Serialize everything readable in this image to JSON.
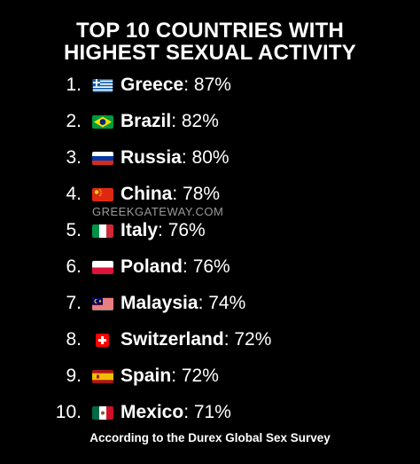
{
  "title": {
    "line1": "TOP 10 COUNTRIES WITH",
    "line2": "HIGHEST SEXUAL ACTIVITY"
  },
  "items": [
    {
      "rank": "1.",
      "country": "Greece",
      "value": "87%",
      "flag": "greece-flag-icon"
    },
    {
      "rank": "2.",
      "country": "Brazil",
      "value": "82%",
      "flag": "brazil-flag-icon"
    },
    {
      "rank": "3.",
      "country": "Russia",
      "value": "80%",
      "flag": "russia-flag-icon"
    },
    {
      "rank": "4.",
      "country": "China",
      "value": "78%",
      "flag": "china-flag-icon"
    },
    {
      "rank": "5.",
      "country": "Italy",
      "value": "76%",
      "flag": "italy-flag-icon"
    },
    {
      "rank": "6.",
      "country": "Poland",
      "value": "76%",
      "flag": "poland-flag-icon"
    },
    {
      "rank": "7.",
      "country": "Malaysia",
      "value": "74%",
      "flag": "malaysia-flag-icon"
    },
    {
      "rank": "8.",
      "country": "Switzerland",
      "value": "72%",
      "flag": "switzerland-flag-icon"
    },
    {
      "rank": "9.",
      "country": "Spain",
      "value": "72%",
      "flag": "spain-flag-icon"
    },
    {
      "rank": "10.",
      "country": "Mexico",
      "value": "71%",
      "flag": "mexico-flag-icon"
    }
  ],
  "watermark": "GREEKGATEWAY.COM",
  "footer": "According to the Durex Global Sex Survey",
  "colors": {
    "background": "#000000",
    "text": "#ffffff",
    "watermark": "#9a9a9a"
  }
}
